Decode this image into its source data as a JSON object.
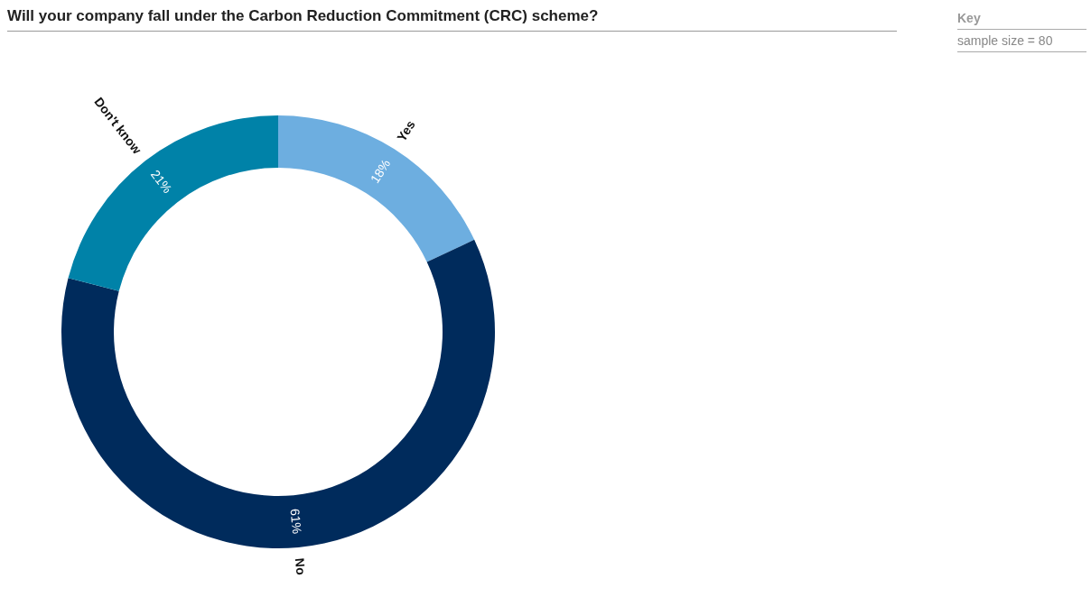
{
  "chart_data": {
    "type": "donut",
    "title": "Will your company fall under the Carbon Reduction Commitment (CRC) scheme?",
    "annotations": [
      "Key",
      "sample size = 80"
    ],
    "categories": [
      "Yes",
      "No",
      "Don't know"
    ],
    "values": [
      18,
      61,
      21
    ],
    "colors": [
      "#6daee0",
      "#002b5c",
      "#0082a8"
    ],
    "value_labels": [
      "18%",
      "61%",
      "21%"
    ]
  }
}
